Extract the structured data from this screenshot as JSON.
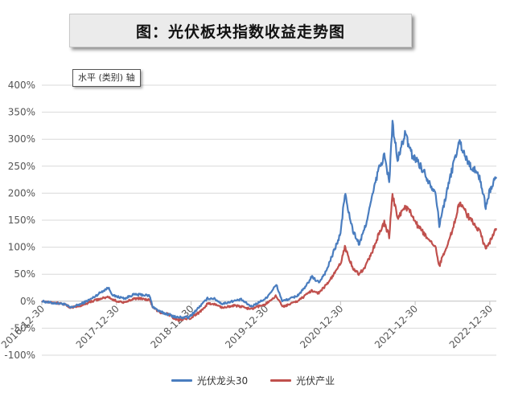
{
  "title": "图：光伏板块指数收益走势图",
  "axis_tag": "水平 (类别) 轴",
  "colors": {
    "series_1": "#4a7dbf",
    "series_2": "#c0504d",
    "grid": "#d9d9d9",
    "axis": "#bfbfbf"
  },
  "chart_data": {
    "type": "line",
    "ylim": [
      -1.0,
      4.0
    ],
    "y_ticks": [
      {
        "value": 4.0,
        "label": "400%"
      },
      {
        "value": 3.5,
        "label": "350%"
      },
      {
        "value": 3.0,
        "label": "300%"
      },
      {
        "value": 2.5,
        "label": "250%"
      },
      {
        "value": 2.0,
        "label": "200%"
      },
      {
        "value": 1.5,
        "label": "150%"
      },
      {
        "value": 1.0,
        "label": "100%"
      },
      {
        "value": 0.5,
        "label": "50%"
      },
      {
        "value": 0.0,
        "label": "0%"
      },
      {
        "value": -0.5,
        "label": "-50%"
      },
      {
        "value": -1.0,
        "label": "-100%"
      }
    ],
    "x_range": [
      "2016-12-30",
      "2023-01-31"
    ],
    "x_ticks": [
      "2016-12-30",
      "2017-12-30",
      "2018-12-30",
      "2019-12-30",
      "2020-12-30",
      "2021-12-30",
      "2022-12-30"
    ],
    "grid": "horizontal",
    "legend_position": "bottom",
    "series": [
      {
        "name": "光伏龙头30",
        "points": [
          [
            "2016-12-30",
            0.0
          ],
          [
            "2017-02-15",
            -0.03
          ],
          [
            "2017-04-15",
            -0.05
          ],
          [
            "2017-05-20",
            -0.12
          ],
          [
            "2017-07-10",
            -0.05
          ],
          [
            "2017-09-01",
            0.05
          ],
          [
            "2017-10-20",
            0.18
          ],
          [
            "2017-11-20",
            0.25
          ],
          [
            "2017-12-15",
            0.1
          ],
          [
            "2018-02-10",
            0.05
          ],
          [
            "2018-03-20",
            0.12
          ],
          [
            "2018-05-01",
            0.12
          ],
          [
            "2018-06-10",
            0.1
          ],
          [
            "2018-06-25",
            -0.1
          ],
          [
            "2018-08-01",
            -0.2
          ],
          [
            "2018-09-15",
            -0.25
          ],
          [
            "2018-10-20",
            -0.3
          ],
          [
            "2018-12-20",
            -0.3
          ],
          [
            "2019-02-10",
            -0.1
          ],
          [
            "2019-03-20",
            0.05
          ],
          [
            "2019-04-20",
            0.05
          ],
          [
            "2019-06-01",
            -0.05
          ],
          [
            "2019-07-20",
            0.0
          ],
          [
            "2019-09-01",
            0.03
          ],
          [
            "2019-10-20",
            -0.1
          ],
          [
            "2019-12-30",
            0.05
          ],
          [
            "2020-02-20",
            0.3
          ],
          [
            "2020-03-20",
            0.0
          ],
          [
            "2020-04-30",
            0.05
          ],
          [
            "2020-06-01",
            0.1
          ],
          [
            "2020-07-10",
            0.25
          ],
          [
            "2020-08-10",
            0.45
          ],
          [
            "2020-09-15",
            0.35
          ],
          [
            "2020-10-20",
            0.55
          ],
          [
            "2020-11-20",
            0.85
          ],
          [
            "2020-12-30",
            1.25
          ],
          [
            "2021-01-20",
            2.0
          ],
          [
            "2021-02-10",
            1.6
          ],
          [
            "2021-03-01",
            1.3
          ],
          [
            "2021-04-01",
            1.05
          ],
          [
            "2021-05-01",
            1.4
          ],
          [
            "2021-06-01",
            1.9
          ],
          [
            "2021-07-01",
            2.4
          ],
          [
            "2021-08-01",
            2.7
          ],
          [
            "2021-08-25",
            2.2
          ],
          [
            "2021-09-10",
            3.3
          ],
          [
            "2021-10-05",
            2.6
          ],
          [
            "2021-11-10",
            3.1
          ],
          [
            "2021-12-15",
            2.7
          ],
          [
            "2022-01-10",
            2.6
          ],
          [
            "2022-02-10",
            2.4
          ],
          [
            "2022-03-10",
            2.2
          ],
          [
            "2022-04-10",
            2.0
          ],
          [
            "2022-04-27",
            1.4
          ],
          [
            "2022-05-20",
            1.8
          ],
          [
            "2022-06-20",
            2.3
          ],
          [
            "2022-07-15",
            2.7
          ],
          [
            "2022-08-05",
            2.95
          ],
          [
            "2022-09-10",
            2.6
          ],
          [
            "2022-10-10",
            2.45
          ],
          [
            "2022-11-10",
            2.3
          ],
          [
            "2022-12-10",
            1.75
          ],
          [
            "2022-12-30",
            2.05
          ],
          [
            "2023-01-31",
            2.3
          ]
        ]
      },
      {
        "name": "光伏产业",
        "points": [
          [
            "2016-12-30",
            0.0
          ],
          [
            "2017-02-15",
            -0.02
          ],
          [
            "2017-04-15",
            -0.05
          ],
          [
            "2017-05-20",
            -0.12
          ],
          [
            "2017-07-10",
            -0.08
          ],
          [
            "2017-09-01",
            0.0
          ],
          [
            "2017-10-20",
            0.05
          ],
          [
            "2017-11-20",
            0.08
          ],
          [
            "2017-12-15",
            0.02
          ],
          [
            "2018-02-10",
            -0.03
          ],
          [
            "2018-03-20",
            0.05
          ],
          [
            "2018-05-01",
            0.05
          ],
          [
            "2018-06-10",
            0.02
          ],
          [
            "2018-06-25",
            -0.12
          ],
          [
            "2018-08-01",
            -0.2
          ],
          [
            "2018-09-15",
            -0.25
          ],
          [
            "2018-10-20",
            -0.35
          ],
          [
            "2018-12-20",
            -0.33
          ],
          [
            "2019-02-10",
            -0.2
          ],
          [
            "2019-03-20",
            -0.05
          ],
          [
            "2019-04-20",
            -0.05
          ],
          [
            "2019-06-01",
            -0.12
          ],
          [
            "2019-07-20",
            -0.08
          ],
          [
            "2019-09-01",
            -0.1
          ],
          [
            "2019-10-20",
            -0.15
          ],
          [
            "2019-12-30",
            -0.05
          ],
          [
            "2020-02-20",
            0.1
          ],
          [
            "2020-03-20",
            -0.1
          ],
          [
            "2020-04-30",
            -0.05
          ],
          [
            "2020-06-01",
            0.0
          ],
          [
            "2020-07-10",
            0.1
          ],
          [
            "2020-08-10",
            0.2
          ],
          [
            "2020-09-15",
            0.15
          ],
          [
            "2020-10-20",
            0.3
          ],
          [
            "2020-11-20",
            0.45
          ],
          [
            "2020-12-30",
            0.7
          ],
          [
            "2021-01-20",
            1.0
          ],
          [
            "2021-02-10",
            0.8
          ],
          [
            "2021-03-01",
            0.6
          ],
          [
            "2021-04-01",
            0.5
          ],
          [
            "2021-05-01",
            0.65
          ],
          [
            "2021-06-01",
            0.9
          ],
          [
            "2021-07-01",
            1.2
          ],
          [
            "2021-08-01",
            1.45
          ],
          [
            "2021-08-25",
            1.2
          ],
          [
            "2021-09-10",
            1.95
          ],
          [
            "2021-10-05",
            1.55
          ],
          [
            "2021-11-10",
            1.75
          ],
          [
            "2021-12-15",
            1.6
          ],
          [
            "2022-01-10",
            1.4
          ],
          [
            "2022-02-10",
            1.25
          ],
          [
            "2022-03-10",
            1.1
          ],
          [
            "2022-04-10",
            1.0
          ],
          [
            "2022-04-27",
            0.65
          ],
          [
            "2022-05-20",
            0.9
          ],
          [
            "2022-06-20",
            1.2
          ],
          [
            "2022-07-15",
            1.5
          ],
          [
            "2022-08-05",
            1.85
          ],
          [
            "2022-09-10",
            1.6
          ],
          [
            "2022-10-10",
            1.45
          ],
          [
            "2022-11-10",
            1.3
          ],
          [
            "2022-12-10",
            0.95
          ],
          [
            "2022-12-30",
            1.1
          ],
          [
            "2023-01-31",
            1.35
          ]
        ]
      }
    ]
  }
}
